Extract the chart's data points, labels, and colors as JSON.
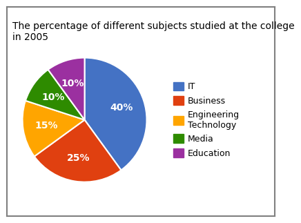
{
  "title": "The percentage of different subjects studied at the college\nin 2005",
  "sizes": [
    40,
    25,
    15,
    10,
    10
  ],
  "colors": [
    "#4472C4",
    "#E04010",
    "#FFA500",
    "#2E8B00",
    "#9B30A0"
  ],
  "pct_labels": [
    "40%",
    "25%",
    "15%",
    "10%",
    "10%"
  ],
  "legend_labels": [
    "IT",
    "Business",
    "Engineering\nTechnology",
    "Media",
    "Education"
  ],
  "startangle": 90,
  "title_fontsize": 10,
  "pct_fontsize": 10,
  "legend_fontsize": 9,
  "background_color": "#FFFFFF",
  "border_color": "#808080"
}
